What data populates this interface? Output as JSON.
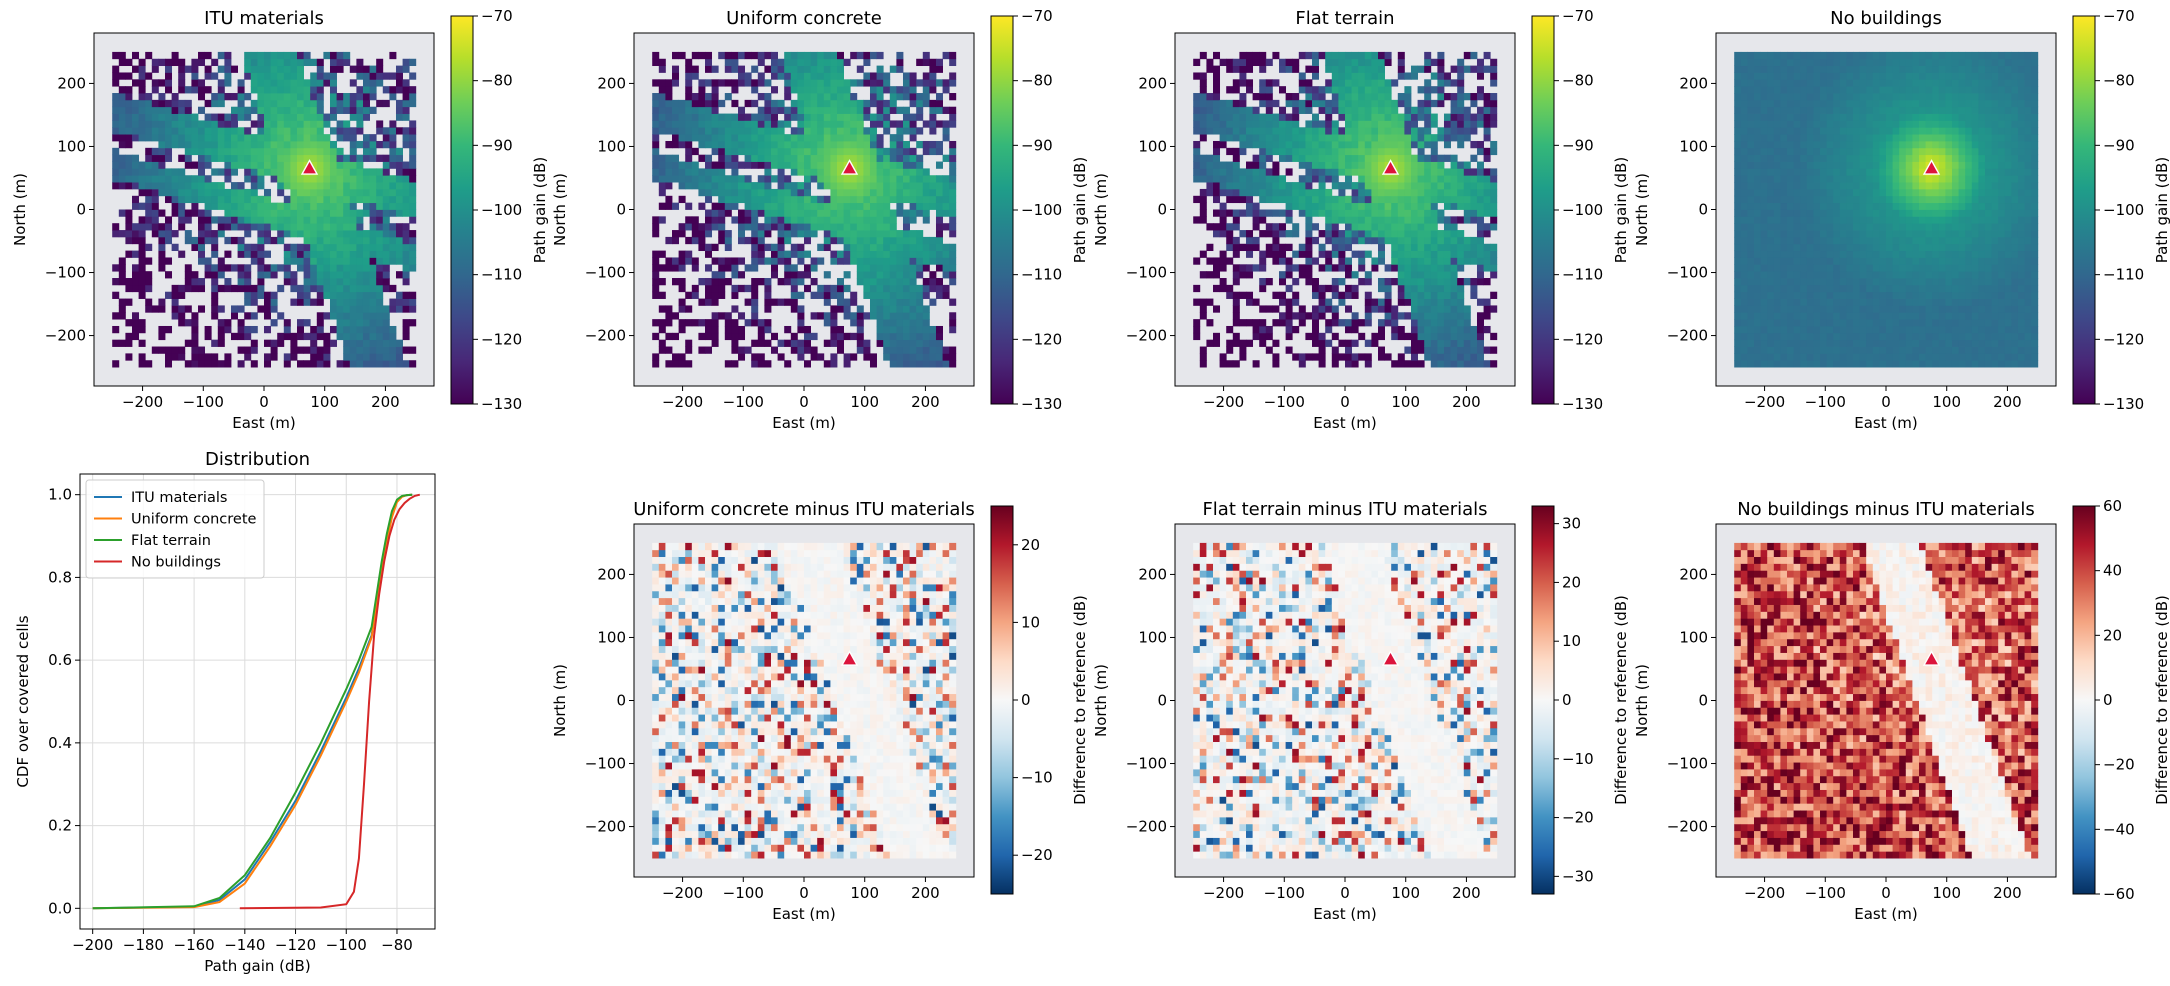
{
  "colors": {
    "panel_background": "#e6e7eb",
    "viridis": [
      "#440154",
      "#482878",
      "#3e4989",
      "#31688e",
      "#26828e",
      "#1f9e89",
      "#35b779",
      "#6ece58",
      "#b5de2b",
      "#fde725"
    ],
    "rdbu": [
      "#053061",
      "#2166ac",
      "#4393c3",
      "#92c5de",
      "#d1e5f0",
      "#f7f7f7",
      "#fddbc7",
      "#f4a582",
      "#d6604d",
      "#b2182b",
      "#67001f"
    ],
    "transmitter_marker": "#dc143c"
  },
  "chart_data": [
    {
      "id": "itu",
      "type": "heatmap",
      "title": "ITU materials",
      "xlabel": "East (m)",
      "ylabel": "North (m)",
      "xlim": [
        -280,
        280
      ],
      "ylim": [
        -280,
        280
      ],
      "xticks": [
        -200,
        -100,
        0,
        100,
        200
      ],
      "yticks": [
        -200,
        -100,
        0,
        100,
        200
      ],
      "tick_labels_x": [
        "−200",
        "−100",
        "0",
        "100",
        "200"
      ],
      "tick_labels_y": [
        "−200",
        "−100",
        "0",
        "100",
        "200"
      ],
      "colorbar": {
        "label": "Path gain (dB)",
        "cmap": "viridis",
        "range": [
          -130,
          -70
        ],
        "ticks": [
          -130,
          -120,
          -110,
          -100,
          -90,
          -80,
          -70
        ],
        "tick_labels": [
          "−130",
          "−120",
          "−110",
          "−100",
          "−90",
          "−80",
          "−70"
        ]
      },
      "transmitter": {
        "x": 75,
        "y": 65
      }
    },
    {
      "id": "uniform",
      "type": "heatmap",
      "title": "Uniform concrete",
      "xlabel": "East (m)",
      "ylabel": "North (m)",
      "xlim": [
        -280,
        280
      ],
      "ylim": [
        -280,
        280
      ],
      "xticks": [
        -200,
        -100,
        0,
        100,
        200
      ],
      "yticks": [
        -200,
        -100,
        0,
        100,
        200
      ],
      "tick_labels_x": [
        "−200",
        "−100",
        "0",
        "100",
        "200"
      ],
      "tick_labels_y": [
        "−200",
        "−100",
        "0",
        "100",
        "200"
      ],
      "colorbar": {
        "label": "Path gain (dB)",
        "cmap": "viridis",
        "range": [
          -130,
          -70
        ],
        "ticks": [
          -130,
          -120,
          -110,
          -100,
          -90,
          -80,
          -70
        ],
        "tick_labels": [
          "−130",
          "−120",
          "−110",
          "−100",
          "−90",
          "−80",
          "−70"
        ]
      },
      "transmitter": {
        "x": 75,
        "y": 65
      }
    },
    {
      "id": "flat",
      "type": "heatmap",
      "title": "Flat terrain",
      "xlabel": "East (m)",
      "ylabel": "North (m)",
      "xlim": [
        -280,
        280
      ],
      "ylim": [
        -280,
        280
      ],
      "xticks": [
        -200,
        -100,
        0,
        100,
        200
      ],
      "yticks": [
        -200,
        -100,
        0,
        100,
        200
      ],
      "tick_labels_x": [
        "−200",
        "−100",
        "0",
        "100",
        "200"
      ],
      "tick_labels_y": [
        "−200",
        "−100",
        "0",
        "100",
        "200"
      ],
      "colorbar": {
        "label": "Path gain (dB)",
        "cmap": "viridis",
        "range": [
          -130,
          -70
        ],
        "ticks": [
          -130,
          -120,
          -110,
          -100,
          -90,
          -80,
          -70
        ],
        "tick_labels": [
          "−130",
          "−120",
          "−110",
          "−100",
          "−90",
          "−80",
          "−70"
        ]
      },
      "transmitter": {
        "x": 75,
        "y": 65
      }
    },
    {
      "id": "nobuild",
      "type": "heatmap",
      "title": "No buildings",
      "xlabel": "East (m)",
      "ylabel": "North (m)",
      "xlim": [
        -280,
        280
      ],
      "ylim": [
        -280,
        280
      ],
      "xticks": [
        -200,
        -100,
        0,
        100,
        200
      ],
      "yticks": [
        -200,
        -100,
        0,
        100,
        200
      ],
      "tick_labels_x": [
        "−200",
        "−100",
        "0",
        "100",
        "200"
      ],
      "tick_labels_y": [
        "−200",
        "−100",
        "0",
        "100",
        "200"
      ],
      "colorbar": {
        "label": "Path gain (dB)",
        "cmap": "viridis",
        "range": [
          -130,
          -70
        ],
        "ticks": [
          -130,
          -120,
          -110,
          -100,
          -90,
          -80,
          -70
        ],
        "tick_labels": [
          "−130",
          "−120",
          "−110",
          "−100",
          "−90",
          "−80",
          "−70"
        ]
      },
      "transmitter": {
        "x": 75,
        "y": 65
      }
    },
    {
      "id": "cdf",
      "type": "line",
      "title": "Distribution",
      "xlabel": "Path gain (dB)",
      "ylabel": "CDF over covered cells",
      "xlim": [
        -205,
        -65
      ],
      "ylim": [
        -0.05,
        1.05
      ],
      "xticks": [
        -200,
        -180,
        -160,
        -140,
        -120,
        -100,
        -80
      ],
      "yticks": [
        0.0,
        0.2,
        0.4,
        0.6,
        0.8,
        1.0
      ],
      "tick_labels_x": [
        "−200",
        "−180",
        "−160",
        "−140",
        "−120",
        "−100",
        "−80"
      ],
      "tick_labels_y": [
        "0.0",
        "0.2",
        "0.4",
        "0.6",
        "0.8",
        "1.0"
      ],
      "grid": true,
      "legend_position": "upper-left",
      "series": [
        {
          "name": "ITU materials",
          "color": "#1f77b4",
          "x": [
            -200,
            -160,
            -150,
            -140,
            -130,
            -120,
            -110,
            -100,
            -95,
            -90,
            -88,
            -86,
            -84,
            -82,
            -80,
            -78,
            -76,
            -74
          ],
          "y": [
            0,
            0.004,
            0.02,
            0.07,
            0.16,
            0.26,
            0.38,
            0.51,
            0.58,
            0.66,
            0.74,
            0.82,
            0.89,
            0.95,
            0.985,
            0.996,
            0.999,
            1.0
          ]
        },
        {
          "name": "Uniform concrete",
          "color": "#ff7f0e",
          "x": [
            -200,
            -160,
            -150,
            -140,
            -130,
            -120,
            -110,
            -100,
            -95,
            -90,
            -88,
            -86,
            -84,
            -82,
            -80,
            -78,
            -76,
            -74
          ],
          "y": [
            0,
            0.003,
            0.015,
            0.06,
            0.15,
            0.25,
            0.37,
            0.5,
            0.57,
            0.655,
            0.735,
            0.815,
            0.885,
            0.945,
            0.982,
            0.995,
            0.999,
            1.0
          ]
        },
        {
          "name": "Flat terrain",
          "color": "#2ca02c",
          "x": [
            -200,
            -160,
            -150,
            -140,
            -130,
            -120,
            -110,
            -100,
            -95,
            -90,
            -88,
            -86,
            -84,
            -82,
            -80,
            -78,
            -76,
            -74
          ],
          "y": [
            0,
            0.005,
            0.025,
            0.08,
            0.17,
            0.28,
            0.4,
            0.53,
            0.6,
            0.68,
            0.76,
            0.84,
            0.905,
            0.96,
            0.988,
            0.997,
            0.999,
            1.0
          ]
        },
        {
          "name": "No buildings",
          "color": "#d62728",
          "x": [
            -142,
            -110,
            -100,
            -97,
            -95,
            -93,
            -91,
            -89,
            -87,
            -85,
            -83,
            -81,
            -79,
            -77,
            -75,
            -73,
            -71
          ],
          "y": [
            0,
            0.002,
            0.01,
            0.04,
            0.12,
            0.3,
            0.5,
            0.66,
            0.76,
            0.84,
            0.9,
            0.94,
            0.965,
            0.98,
            0.99,
            0.997,
            1.0
          ]
        }
      ]
    },
    {
      "id": "diff_uniform",
      "type": "heatmap",
      "title": "Uniform concrete minus ITU materials",
      "xlabel": "East (m)",
      "ylabel": "North (m)",
      "xlim": [
        -280,
        280
      ],
      "ylim": [
        -280,
        280
      ],
      "xticks": [
        -200,
        -100,
        0,
        100,
        200
      ],
      "yticks": [
        -200,
        -100,
        0,
        100,
        200
      ],
      "tick_labels_x": [
        "−200",
        "−100",
        "0",
        "100",
        "200"
      ],
      "tick_labels_y": [
        "−200",
        "−100",
        "0",
        "100",
        "200"
      ],
      "colorbar": {
        "label": "Difference to reference (dB)",
        "cmap": "rdbu",
        "range": [
          -25,
          25
        ],
        "ticks": [
          -20,
          -10,
          0,
          10,
          20
        ],
        "tick_labels": [
          "−20",
          "−10",
          "0",
          "10",
          "20"
        ]
      },
      "transmitter": {
        "x": 75,
        "y": 65
      }
    },
    {
      "id": "diff_flat",
      "type": "heatmap",
      "title": "Flat terrain minus ITU materials",
      "xlabel": "East (m)",
      "ylabel": "North (m)",
      "xlim": [
        -280,
        280
      ],
      "ylim": [
        -280,
        280
      ],
      "xticks": [
        -200,
        -100,
        0,
        100,
        200
      ],
      "yticks": [
        -200,
        -100,
        0,
        100,
        200
      ],
      "tick_labels_x": [
        "−200",
        "−100",
        "0",
        "100",
        "200"
      ],
      "tick_labels_y": [
        "−200",
        "−100",
        "0",
        "100",
        "200"
      ],
      "colorbar": {
        "label": "Difference to reference (dB)",
        "cmap": "rdbu",
        "range": [
          -33,
          33
        ],
        "ticks": [
          -30,
          -20,
          -10,
          0,
          10,
          20,
          30
        ],
        "tick_labels": [
          "−30",
          "−20",
          "−10",
          "0",
          "10",
          "20",
          "30"
        ]
      },
      "transmitter": {
        "x": 75,
        "y": 65
      }
    },
    {
      "id": "diff_nobuild",
      "type": "heatmap",
      "title": "No buildings minus ITU materials",
      "xlabel": "East (m)",
      "ylabel": "North (m)",
      "xlim": [
        -280,
        280
      ],
      "ylim": [
        -280,
        280
      ],
      "xticks": [
        -200,
        -100,
        0,
        100,
        200
      ],
      "yticks": [
        -200,
        -100,
        0,
        100,
        200
      ],
      "tick_labels_x": [
        "−200",
        "−100",
        "0",
        "100",
        "200"
      ],
      "tick_labels_y": [
        "−200",
        "−100",
        "0",
        "100",
        "200"
      ],
      "colorbar": {
        "label": "Difference to reference (dB)",
        "cmap": "rdbu",
        "range": [
          -60,
          60
        ],
        "ticks": [
          -60,
          -40,
          -20,
          0,
          20,
          40,
          60
        ],
        "tick_labels": [
          "−60",
          "−40",
          "−20",
          "0",
          "20",
          "40",
          "60"
        ]
      },
      "transmitter": {
        "x": 75,
        "y": 65
      }
    }
  ]
}
